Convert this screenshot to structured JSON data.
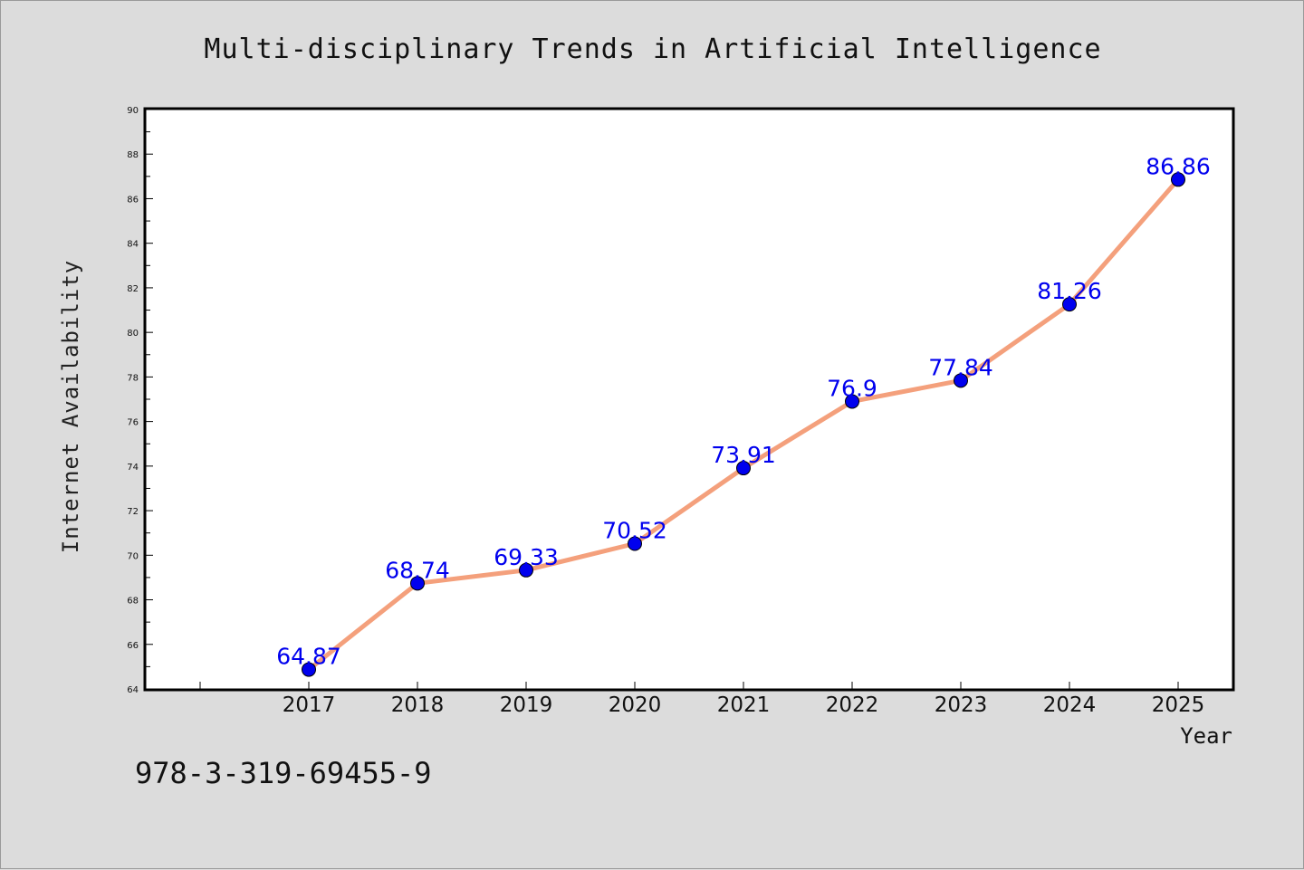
{
  "chart_data": {
    "type": "line",
    "title": "Multi-disciplinary Trends in Artificial Intelligence",
    "xlabel": "Year",
    "ylabel": "Internet Availability",
    "x": [
      "2017",
      "2018",
      "2019",
      "2020",
      "2021",
      "2022",
      "2023",
      "2024",
      "2025"
    ],
    "series": [
      {
        "values": [
          64.87,
          68.74,
          69.33,
          70.52,
          73.91,
          76.9,
          77.84,
          81.26,
          86.86
        ],
        "data_labels": [
          "64.87",
          "68.74",
          "69.33",
          "70.52",
          "73.91",
          "76.9",
          "77.84",
          "81.26",
          "86.86"
        ]
      }
    ],
    "ylim": [
      64,
      90
    ],
    "yticks": [
      "64",
      "66",
      "68",
      "70",
      "72",
      "74",
      "76",
      "78",
      "80",
      "82",
      "84",
      "86",
      "88",
      "90"
    ],
    "grid": false,
    "colors": {
      "line": "#f4a07c",
      "marker": "#0000ee",
      "label": "#0000ee",
      "background": "#dcdcdc",
      "plot_background": "#ffffff"
    }
  },
  "footer": {
    "isbn": "978-3-319-69455-9"
  }
}
